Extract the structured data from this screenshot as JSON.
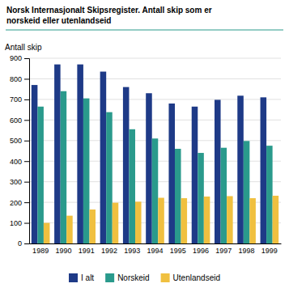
{
  "chart_data": {
    "type": "bar",
    "title": "Norsk Internasjonalt Skipsregister. Antall skip som er",
    "subtitle": "norskeid eller utenlandseid",
    "y_label": "Antall skip",
    "categories": [
      "1989",
      "1990",
      "1991",
      "1992",
      "1993",
      "1994",
      "1995",
      "1996",
      "1997",
      "1998",
      "1999"
    ],
    "series": [
      {
        "name": "I alt",
        "color": "#1e3a87",
        "values": [
          770,
          870,
          870,
          835,
          760,
          730,
          680,
          665,
          698,
          718,
          710
        ]
      },
      {
        "name": "Norskeid",
        "color": "#2a9a8c",
        "values": [
          665,
          740,
          705,
          638,
          555,
          510,
          460,
          440,
          465,
          498,
          475
        ]
      },
      {
        "name": "Utenlandseid",
        "color": "#f0c040",
        "values": [
          100,
          135,
          165,
          198,
          203,
          222,
          220,
          228,
          230,
          220,
          232
        ]
      }
    ],
    "ylim": [
      0,
      900
    ],
    "yticks": [
      0,
      100,
      200,
      300,
      400,
      500,
      600,
      700,
      800,
      900
    ],
    "grid": true,
    "legend": "bottom"
  }
}
